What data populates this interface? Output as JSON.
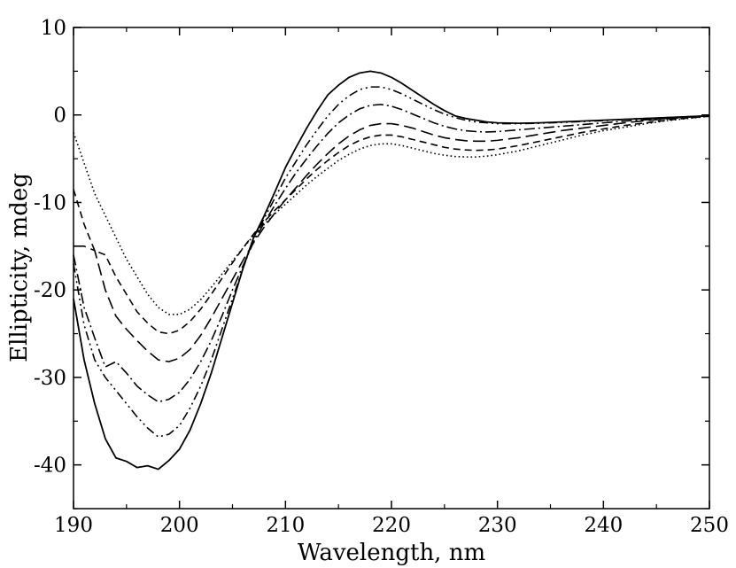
{
  "chart_data": {
    "type": "line",
    "title": "",
    "xlabel": "Wavelength, nm",
    "ylabel": "Ellipticity, mdeg",
    "xlim": [
      190,
      250
    ],
    "ylim": [
      -45,
      10
    ],
    "xticks": [
      190,
      200,
      210,
      220,
      230,
      240,
      250
    ],
    "yticks": [
      -40,
      -30,
      -20,
      -10,
      0,
      10
    ],
    "grid": false,
    "legend": "none",
    "line_color": "#000000",
    "series": [
      {
        "style": "solid",
        "x": [
          190,
          191,
          192,
          193,
          194,
          195,
          196,
          197,
          198,
          199,
          200,
          201,
          202,
          203,
          204,
          205,
          206,
          207,
          208,
          209,
          210,
          211,
          212,
          213,
          214,
          215,
          216,
          217,
          218,
          219,
          220,
          221,
          222,
          223,
          224,
          225,
          226,
          227,
          228,
          229,
          230,
          232,
          234,
          236,
          238,
          240,
          242,
          244,
          246,
          248,
          250
        ],
        "y": [
          -21,
          -28,
          -33,
          -37,
          -39.2,
          -39.6,
          -40.3,
          -40.1,
          -40.5,
          -39.5,
          -38.2,
          -36,
          -33,
          -29.5,
          -25.5,
          -21.5,
          -17.5,
          -14,
          -11.5,
          -8.8,
          -6,
          -3.7,
          -1.5,
          0.5,
          2.3,
          3.4,
          4.3,
          4.8,
          5,
          4.8,
          4.3,
          3.6,
          2.8,
          2,
          1.2,
          0.5,
          -0.1,
          -0.4,
          -0.6,
          -0.8,
          -0.9,
          -0.95,
          -0.9,
          -0.8,
          -0.7,
          -0.6,
          -0.5,
          -0.4,
          -0.3,
          -0.2,
          -0.1
        ]
      },
      {
        "style": "dash-dot-dot",
        "x": [
          190,
          191,
          192,
          193,
          194,
          195,
          196,
          197,
          198,
          199,
          200,
          201,
          202,
          203,
          204,
          205,
          206,
          207,
          208,
          209,
          210,
          211,
          212,
          213,
          214,
          215,
          216,
          217,
          218,
          219,
          220,
          221,
          222,
          223,
          224,
          225,
          226,
          227,
          228,
          229,
          230,
          232,
          234,
          236,
          238,
          240,
          242,
          244,
          246,
          248,
          250
        ],
        "y": [
          -17,
          -24,
          -28,
          -30,
          -31.5,
          -33,
          -34.5,
          -35.8,
          -36.8,
          -36.5,
          -35.5,
          -33.5,
          -31,
          -28,
          -24.5,
          -21,
          -17.5,
          -14.2,
          -11.8,
          -9.5,
          -7.2,
          -5.3,
          -3.4,
          -1.7,
          -0.1,
          1.2,
          2.2,
          2.9,
          3.2,
          3.2,
          2.9,
          2.4,
          1.8,
          1.2,
          0.6,
          0.1,
          -0.3,
          -0.6,
          -0.8,
          -0.9,
          -1,
          -1,
          -0.95,
          -0.85,
          -0.75,
          -0.65,
          -0.5,
          -0.4,
          -0.3,
          -0.2,
          -0.1
        ]
      },
      {
        "style": "dash-dot",
        "x": [
          190,
          191,
          192,
          193,
          194,
          195,
          196,
          197,
          198,
          199,
          200,
          201,
          202,
          203,
          204,
          205,
          206,
          207,
          208,
          209,
          210,
          211,
          212,
          213,
          214,
          215,
          216,
          217,
          218,
          219,
          220,
          221,
          222,
          223,
          224,
          225,
          226,
          227,
          228,
          229,
          230,
          232,
          234,
          236,
          238,
          240,
          242,
          244,
          246,
          248,
          250
        ],
        "y": [
          -16,
          -22,
          -25.5,
          -28.8,
          -28.2,
          -29.5,
          -31,
          -32,
          -32.8,
          -32.5,
          -31.7,
          -30.2,
          -28.2,
          -25.8,
          -23,
          -20,
          -17.2,
          -14.5,
          -12.3,
          -10.3,
          -8.4,
          -6.6,
          -5,
          -3.5,
          -2.1,
          -0.9,
          0,
          0.7,
          1.1,
          1.2,
          1,
          0.6,
          0.1,
          -0.4,
          -0.9,
          -1.3,
          -1.6,
          -1.8,
          -1.9,
          -1.95,
          -1.9,
          -1.7,
          -1.5,
          -1.3,
          -1.1,
          -0.9,
          -0.7,
          -0.55,
          -0.4,
          -0.25,
          -0.1
        ]
      },
      {
        "style": "long-dash",
        "x": [
          190,
          191,
          192,
          193,
          194,
          195,
          196,
          197,
          198,
          199,
          200,
          201,
          202,
          203,
          204,
          205,
          206,
          207,
          208,
          209,
          210,
          211,
          212,
          213,
          214,
          215,
          216,
          217,
          218,
          219,
          220,
          221,
          222,
          223,
          224,
          225,
          226,
          227,
          228,
          229,
          230,
          232,
          234,
          236,
          238,
          240,
          242,
          244,
          246,
          248,
          250
        ],
        "y": [
          -15,
          -15,
          -15.5,
          -20,
          -23,
          -24.5,
          -25.8,
          -27,
          -28,
          -28.2,
          -27.8,
          -26.8,
          -25.2,
          -23.2,
          -21,
          -18.8,
          -16.6,
          -14.6,
          -12.8,
          -11.2,
          -9.7,
          -8.3,
          -6.9,
          -5.6,
          -4.4,
          -3.3,
          -2.4,
          -1.7,
          -1.2,
          -1,
          -1,
          -1.2,
          -1.5,
          -1.9,
          -2.3,
          -2.6,
          -2.8,
          -2.95,
          -3,
          -3,
          -2.9,
          -2.6,
          -2.2,
          -1.8,
          -1.5,
          -1.2,
          -0.9,
          -0.65,
          -0.45,
          -0.25,
          -0.1
        ]
      },
      {
        "style": "dash",
        "x": [
          190,
          191,
          192,
          193,
          194,
          195,
          196,
          197,
          198,
          199,
          200,
          201,
          202,
          203,
          204,
          205,
          206,
          207,
          208,
          209,
          210,
          211,
          212,
          213,
          214,
          215,
          216,
          217,
          218,
          219,
          220,
          221,
          222,
          223,
          224,
          225,
          226,
          227,
          228,
          229,
          230,
          232,
          234,
          236,
          238,
          240,
          242,
          244,
          246,
          248,
          250
        ],
        "y": [
          -8.5,
          -12.5,
          -15.5,
          -16,
          -18.5,
          -20.5,
          -22.5,
          -23.8,
          -24.8,
          -25,
          -24.6,
          -23.6,
          -22.2,
          -20.5,
          -18.7,
          -16.9,
          -15.2,
          -13.6,
          -12.2,
          -10.9,
          -9.7,
          -8.5,
          -7.3,
          -6.2,
          -5.2,
          -4.3,
          -3.5,
          -2.9,
          -2.5,
          -2.3,
          -2.3,
          -2.5,
          -2.8,
          -3.1,
          -3.4,
          -3.7,
          -3.9,
          -4,
          -4.05,
          -4,
          -3.9,
          -3.5,
          -3,
          -2.5,
          -2,
          -1.6,
          -1.2,
          -0.9,
          -0.6,
          -0.35,
          -0.15
        ]
      },
      {
        "style": "dotted",
        "x": [
          190,
          191,
          192,
          193,
          194,
          195,
          196,
          197,
          198,
          199,
          200,
          201,
          202,
          203,
          204,
          205,
          206,
          207,
          208,
          209,
          210,
          211,
          212,
          213,
          214,
          215,
          216,
          217,
          218,
          219,
          220,
          221,
          222,
          223,
          224,
          225,
          226,
          227,
          228,
          229,
          230,
          232,
          234,
          236,
          238,
          240,
          242,
          244,
          246,
          248,
          250
        ],
        "y": [
          -2,
          -5.5,
          -9,
          -11.5,
          -14,
          -16.5,
          -18.5,
          -20.5,
          -22,
          -22.8,
          -22.8,
          -22.2,
          -21.1,
          -19.7,
          -18.2,
          -16.7,
          -15.2,
          -13.8,
          -12.5,
          -11.3,
          -10.2,
          -9.1,
          -8,
          -7,
          -6.1,
          -5.2,
          -4.5,
          -3.9,
          -3.5,
          -3.3,
          -3.3,
          -3.5,
          -3.8,
          -4.1,
          -4.4,
          -4.6,
          -4.75,
          -4.8,
          -4.8,
          -4.7,
          -4.55,
          -4.1,
          -3.5,
          -2.9,
          -2.3,
          -1.8,
          -1.4,
          -1,
          -0.65,
          -0.4,
          -0.15
        ]
      }
    ]
  }
}
